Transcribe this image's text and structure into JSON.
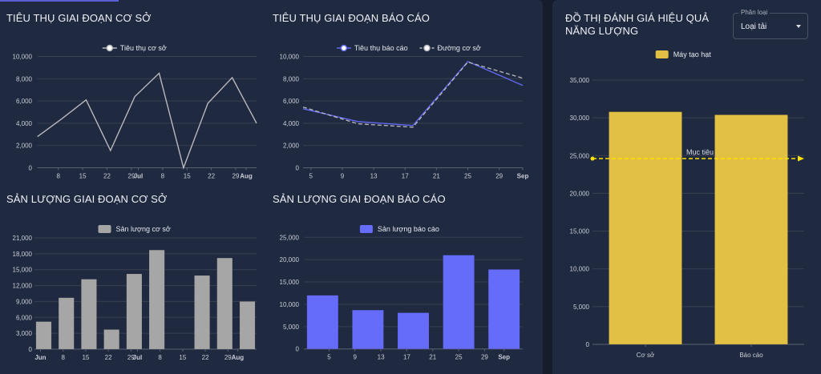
{
  "colors": {
    "grid": "#39414f",
    "axis": "#5b6272",
    "line_gray": "#b9b9bd",
    "report_blue": "#6368f0",
    "bar_gray": "#a6a6a6",
    "bar_blue": "#666cfa",
    "bar_yellow": "#e2c044",
    "target_yellow": "#ffe100"
  },
  "dropdown": {
    "label": "Phân loại",
    "value": "Loại tải"
  },
  "chart_data": [
    {
      "id": "consumption-baseline",
      "type": "line",
      "title": "TIÊU THỤ GIAI ĐOẠN CƠ SỞ",
      "xlabel": "",
      "ylabel": "",
      "ylim": [
        0,
        10000
      ],
      "yticks": [
        0,
        2000,
        4000,
        6000,
        8000,
        10000
      ],
      "ytick_labels": [
        "0",
        "2,000",
        "4,000",
        "6,000",
        "8,000",
        "10,000"
      ],
      "grid": true,
      "legend_position": "top",
      "x": [
        "2025-06-02",
        "2025-06-09",
        "2025-06-16",
        "2025-06-23",
        "2025-06-30",
        "2025-07-07",
        "2025-07-14",
        "2025-07-21",
        "2025-07-28",
        "2025-08-04"
      ],
      "xticks": [
        {
          "date": "2025-06-08",
          "label": "8",
          "bold": false
        },
        {
          "date": "2025-06-15",
          "label": "15",
          "bold": false
        },
        {
          "date": "2025-06-22",
          "label": "22",
          "bold": false
        },
        {
          "date": "2025-06-29",
          "label": "29",
          "bold": false
        },
        {
          "date": "2025-07-01",
          "label": "Jul",
          "bold": true
        },
        {
          "date": "2025-07-08",
          "label": "8",
          "bold": false
        },
        {
          "date": "2025-07-15",
          "label": "15",
          "bold": false
        },
        {
          "date": "2025-07-22",
          "label": "22",
          "bold": false
        },
        {
          "date": "2025-07-29",
          "label": "29",
          "bold": false
        },
        {
          "date": "2025-08-01",
          "label": "Aug",
          "bold": true
        }
      ],
      "series": [
        {
          "name": "Tiêu thụ cơ sở",
          "style": "solid",
          "color_key": "line_gray",
          "values": [
            2800,
            4400,
            6100,
            1550,
            6400,
            8500,
            0,
            5800,
            8100,
            4000
          ]
        }
      ]
    },
    {
      "id": "consumption-report",
      "type": "line",
      "title": "TIÊU THỤ GIAI ĐOẠN BÁO CÁO",
      "xlabel": "",
      "ylabel": "",
      "ylim": [
        0,
        10000
      ],
      "yticks": [
        0,
        2000,
        4000,
        6000,
        8000,
        10000
      ],
      "ytick_labels": [
        "0",
        "2,000",
        "4,000",
        "6,000",
        "8,000",
        "10,000"
      ],
      "grid": true,
      "legend_position": "top",
      "x": [
        "2025-08-04",
        "2025-08-11",
        "2025-08-18",
        "2025-08-25",
        "2025-09-01"
      ],
      "xticks": [
        {
          "date": "2025-08-05",
          "label": "5",
          "bold": false
        },
        {
          "date": "2025-08-09",
          "label": "9",
          "bold": false
        },
        {
          "date": "2025-08-13",
          "label": "13",
          "bold": false
        },
        {
          "date": "2025-08-17",
          "label": "17",
          "bold": false
        },
        {
          "date": "2025-08-21",
          "label": "21",
          "bold": false
        },
        {
          "date": "2025-08-25",
          "label": "25",
          "bold": false
        },
        {
          "date": "2025-08-29",
          "label": "29",
          "bold": false
        },
        {
          "date": "2025-09-01",
          "label": "Sep",
          "bold": true
        }
      ],
      "series": [
        {
          "name": "Tiêu thụ báo cáo",
          "style": "solid",
          "color_key": "report_blue",
          "values": [
            5300,
            4150,
            3800,
            9550,
            7400
          ]
        },
        {
          "name": "Đường cơ sở",
          "style": "dashed",
          "color_key": "line_gray",
          "values": [
            5450,
            3950,
            3650,
            9500,
            8050
          ]
        }
      ]
    },
    {
      "id": "output-baseline",
      "type": "bar",
      "title": "SẢN LƯỢNG GIAI ĐOẠN CƠ SỞ",
      "xlabel": "",
      "ylabel": "",
      "ylim": [
        0,
        21000
      ],
      "yticks": [
        0,
        3000,
        6000,
        9000,
        12000,
        15000,
        18000,
        21000
      ],
      "ytick_labels": [
        "0",
        "3,000",
        "6,000",
        "9,000",
        "12,000",
        "15,000",
        "18,000",
        "21,000"
      ],
      "grid": true,
      "legend_position": "top",
      "x": [
        "2025-06-02",
        "2025-06-09",
        "2025-06-16",
        "2025-06-23",
        "2025-06-30",
        "2025-07-07",
        "2025-07-14",
        "2025-07-21",
        "2025-07-28",
        "2025-08-04"
      ],
      "xticks": [
        {
          "date": "2025-06-01",
          "label": "Jun",
          "bold": true
        },
        {
          "date": "2025-06-08",
          "label": "8",
          "bold": false
        },
        {
          "date": "2025-06-15",
          "label": "15",
          "bold": false
        },
        {
          "date": "2025-06-22",
          "label": "22",
          "bold": false
        },
        {
          "date": "2025-06-29",
          "label": "29",
          "bold": false
        },
        {
          "date": "2025-07-01",
          "label": "Jul",
          "bold": true
        },
        {
          "date": "2025-07-08",
          "label": "8",
          "bold": false
        },
        {
          "date": "2025-07-15",
          "label": "15",
          "bold": false
        },
        {
          "date": "2025-07-22",
          "label": "22",
          "bold": false
        },
        {
          "date": "2025-07-29",
          "label": "29",
          "bold": false
        },
        {
          "date": "2025-08-01",
          "label": "Aug",
          "bold": true
        }
      ],
      "series": [
        {
          "name": "Sản lượng cơ sở",
          "color_key": "bar_gray",
          "values": [
            5200,
            9700,
            13200,
            3700,
            14200,
            18700,
            0,
            13900,
            17200,
            9000
          ]
        }
      ]
    },
    {
      "id": "output-report",
      "type": "bar",
      "title": "SẢN LƯỢNG GIAI ĐOẠN BÁO CÁO",
      "xlabel": "",
      "ylabel": "",
      "ylim": [
        0,
        25000
      ],
      "yticks": [
        0,
        5000,
        10000,
        15000,
        20000,
        25000
      ],
      "ytick_labels": [
        "0",
        "5,000",
        "10,000",
        "15,000",
        "20,000",
        "25,000"
      ],
      "grid": true,
      "legend_position": "top",
      "x": [
        "2025-08-04",
        "2025-08-11",
        "2025-08-18",
        "2025-08-25",
        "2025-09-01"
      ],
      "xticks": [
        {
          "date": "2025-08-05",
          "label": "5",
          "bold": false
        },
        {
          "date": "2025-08-09",
          "label": "9",
          "bold": false
        },
        {
          "date": "2025-08-13",
          "label": "13",
          "bold": false
        },
        {
          "date": "2025-08-17",
          "label": "17",
          "bold": false
        },
        {
          "date": "2025-08-21",
          "label": "21",
          "bold": false
        },
        {
          "date": "2025-08-25",
          "label": "25",
          "bold": false
        },
        {
          "date": "2025-08-29",
          "label": "29",
          "bold": false
        },
        {
          "date": "2025-09-01",
          "label": "Sep",
          "bold": true
        }
      ],
      "series": [
        {
          "name": "Sản lượng báo cáo",
          "color_key": "bar_blue",
          "values": [
            12000,
            8700,
            8100,
            21000,
            17800
          ]
        }
      ]
    },
    {
      "id": "energy-efficiency",
      "type": "bar",
      "title": "ĐỒ THỊ ĐÁNH GIÁ HIỆU QUẢ NĂNG LƯỢNG",
      "xlabel": "",
      "ylabel": "",
      "ylim": [
        0,
        35000
      ],
      "yticks": [
        0,
        5000,
        10000,
        15000,
        20000,
        25000,
        30000,
        35000
      ],
      "ytick_labels": [
        "0",
        "5,000",
        "10,000",
        "15,000",
        "20,000",
        "25,000",
        "30,000",
        "35,000"
      ],
      "grid": true,
      "legend_position": "top",
      "categories": [
        "Cơ sở",
        "Báo cáo"
      ],
      "series": [
        {
          "name": "Máy tạo hạt",
          "color_key": "bar_yellow",
          "values": [
            30800,
            30400
          ]
        }
      ],
      "annotations": [
        {
          "type": "target-line",
          "label": "Mục tiêu",
          "value": 24600,
          "color_key": "target_yellow"
        }
      ]
    }
  ]
}
